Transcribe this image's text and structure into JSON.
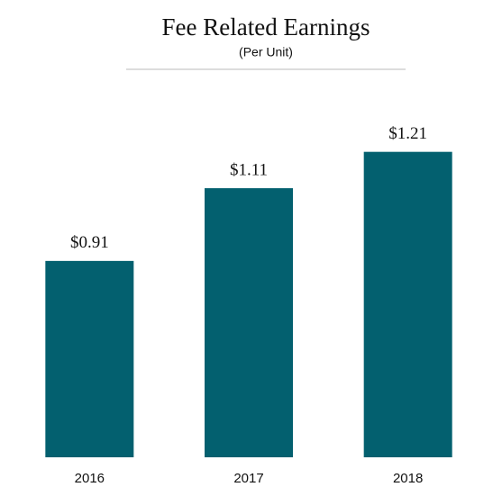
{
  "chart_data": {
    "type": "bar",
    "title": "Fee Related Earnings",
    "subtitle": "(Per Unit)",
    "categories": [
      "2016",
      "2017",
      "2018"
    ],
    "values": [
      0.91,
      1.11,
      1.21
    ],
    "value_labels": [
      "$0.91",
      "$1.11",
      "$1.21"
    ],
    "color": "#03606f",
    "ylim": [
      0.37,
      1.38
    ]
  }
}
